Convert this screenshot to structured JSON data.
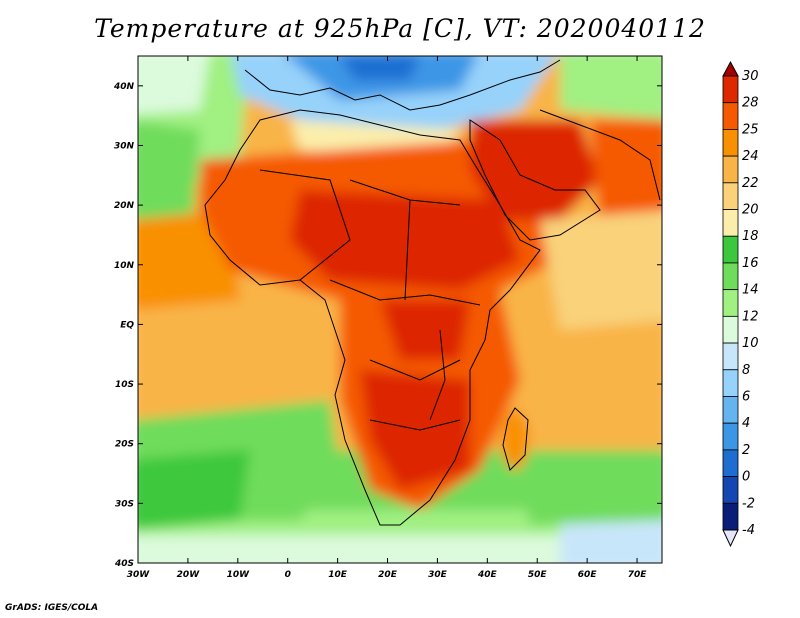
{
  "title": "Temperature at 925hPa [C], VT: 2020040112",
  "credit": "GrADS: IGES/COLA",
  "map": {
    "projection": "latlon",
    "lon_range": [
      -30,
      75
    ],
    "lat_range": [
      -40,
      45
    ],
    "lon_ticks": [
      "30W",
      "20W",
      "10W",
      "0",
      "10E",
      "20E",
      "30E",
      "40E",
      "50E",
      "60E",
      "70E"
    ],
    "lat_ticks": [
      "40N",
      "30N",
      "20N",
      "10N",
      "EQ",
      "10S",
      "20S",
      "30S",
      "40S"
    ],
    "variable": "Temperature at 925hPa",
    "units": "C"
  },
  "colorbar": {
    "levels": [
      "30",
      "28",
      "25",
      "24",
      "22",
      "20",
      "18",
      "16",
      "14",
      "12",
      "10",
      "8",
      "6",
      "4",
      "2",
      "0",
      "-2",
      "-4"
    ],
    "colors": [
      "#a50000",
      "#dd2800",
      "#f55a00",
      "#f99000",
      "#f9b447",
      "#f9d27a",
      "#fbeeab",
      "#3cc83c",
      "#70dc5c",
      "#a0f082",
      "#dcfadc",
      "#c8e6fa",
      "#96d2fa",
      "#64b4f0",
      "#3c96e6",
      "#1e6ed2",
      "#1446b4",
      "#0a1e78",
      "#e6e6fa"
    ]
  }
}
